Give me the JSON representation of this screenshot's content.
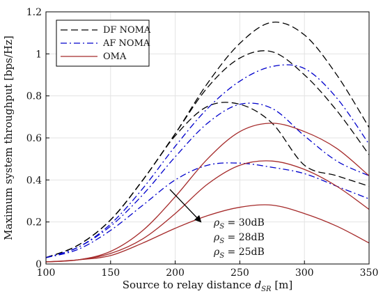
{
  "chart_data": {
    "type": "line",
    "xlabel": "Source to relay distance d_SR [m]",
    "xlabel_main": "Source to relay distance ",
    "xlabel_var": "d",
    "xlabel_sub": "SR",
    "xlabel_unit": " [m]",
    "ylabel": "Maximum system throughput [bps/Hz]",
    "xlim": [
      100,
      350
    ],
    "ylim": [
      0,
      1.2
    ],
    "xticks": [
      100,
      150,
      200,
      250,
      300,
      350
    ],
    "yticks": [
      0,
      0.2,
      0.4,
      0.6,
      0.8,
      1,
      1.2
    ],
    "xtick_labels": [
      "100",
      "150",
      "200",
      "250",
      "300",
      "350"
    ],
    "ytick_labels": [
      "0",
      "0.2",
      "0.4",
      "0.6",
      "0.8",
      "1",
      "1.2"
    ],
    "grid": true,
    "legend_position": "top-left",
    "legend": [
      {
        "label": "DF NOMA",
        "color": "#000000",
        "style": "dashed"
      },
      {
        "label": "AF NOMA",
        "color": "#0000cc",
        "style": "dashdot"
      },
      {
        "label": "OMA",
        "color": "#a52a2a",
        "style": "solid"
      }
    ],
    "x": [
      100,
      125,
      150,
      175,
      200,
      225,
      250,
      275,
      300,
      325,
      350
    ],
    "series": [
      {
        "group": "DF NOMA",
        "rho": "30dB",
        "color": "#000000",
        "style": "dashed",
        "values": [
          0.03,
          0.09,
          0.21,
          0.4,
          0.62,
          0.86,
          1.05,
          1.15,
          1.09,
          0.9,
          0.65
        ]
      },
      {
        "group": "DF NOMA",
        "rho": "28dB",
        "color": "#000000",
        "style": "dashed",
        "values": [
          0.03,
          0.09,
          0.21,
          0.4,
          0.62,
          0.84,
          0.98,
          1.01,
          0.9,
          0.73,
          0.52
        ]
      },
      {
        "group": "DF NOMA",
        "rho": "25dB",
        "color": "#000000",
        "style": "dashed",
        "values": [
          0.03,
          0.09,
          0.21,
          0.4,
          0.61,
          0.75,
          0.76,
          0.67,
          0.47,
          0.42,
          0.37
        ]
      },
      {
        "group": "AF NOMA",
        "rho": "30dB",
        "color": "#0000cc",
        "style": "dashdot",
        "values": [
          0.03,
          0.08,
          0.19,
          0.36,
          0.56,
          0.74,
          0.87,
          0.94,
          0.93,
          0.79,
          0.57
        ]
      },
      {
        "group": "AF NOMA",
        "rho": "28dB",
        "color": "#0000cc",
        "style": "dashdot",
        "values": [
          0.03,
          0.08,
          0.18,
          0.33,
          0.51,
          0.67,
          0.76,
          0.74,
          0.61,
          0.49,
          0.42
        ]
      },
      {
        "group": "AF NOMA",
        "rho": "25dB",
        "color": "#0000cc",
        "style": "dashdot",
        "values": [
          0.03,
          0.07,
          0.16,
          0.28,
          0.4,
          0.47,
          0.48,
          0.46,
          0.43,
          0.37,
          0.31
        ]
      },
      {
        "group": "OMA",
        "rho": "30dB",
        "color": "#a52a2a",
        "style": "solid",
        "values": [
          0.01,
          0.02,
          0.06,
          0.16,
          0.32,
          0.5,
          0.63,
          0.67,
          0.63,
          0.55,
          0.42
        ]
      },
      {
        "group": "OMA",
        "rho": "28dB",
        "color": "#a52a2a",
        "style": "solid",
        "values": [
          0.01,
          0.02,
          0.05,
          0.12,
          0.24,
          0.38,
          0.47,
          0.49,
          0.45,
          0.37,
          0.26
        ]
      },
      {
        "group": "OMA",
        "rho": "25dB",
        "color": "#a52a2a",
        "style": "solid",
        "values": [
          0.01,
          0.02,
          0.04,
          0.1,
          0.17,
          0.23,
          0.27,
          0.28,
          0.24,
          0.18,
          0.1
        ]
      }
    ],
    "annotations": [
      {
        "var": "ρ",
        "sub": "S",
        "text": " = 30dB"
      },
      {
        "var": "ρ",
        "sub": "S",
        "text": " = 28dB"
      },
      {
        "var": "ρ",
        "sub": "S",
        "text": " = 25dB"
      }
    ]
  }
}
